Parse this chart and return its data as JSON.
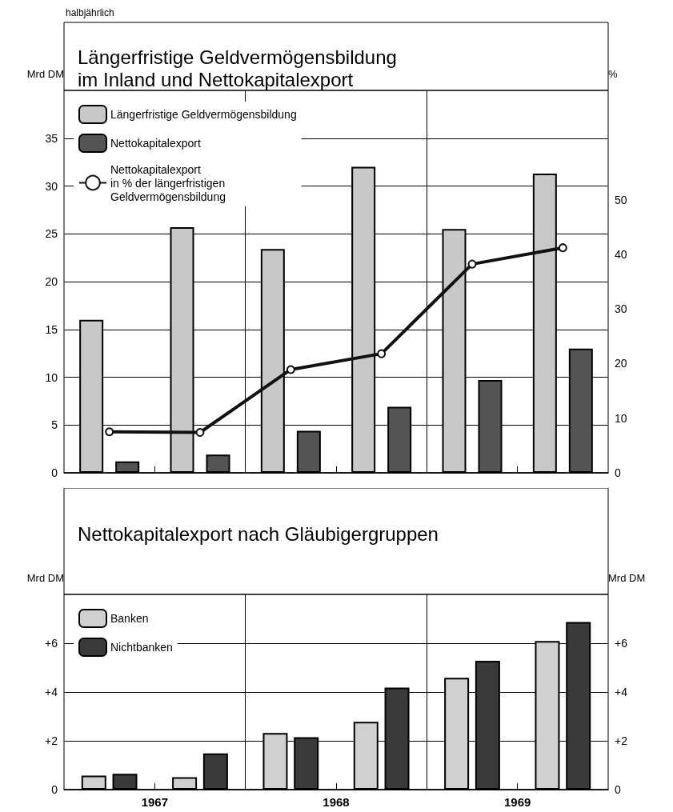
{
  "chart_data": [
    {
      "type": "bar",
      "title": "Längerfristige Geldvermögensbildung\nim Inland und Nettokapitalexport",
      "annotations": [
        "halbjährlich"
      ],
      "ylabel": "Mrd DM",
      "y2label": "%",
      "x": [
        1967.25,
        1967.75,
        1968.25,
        1968.75,
        1969.25,
        1969.75
      ],
      "series": [
        {
          "name": "Längerfristige Geldvermögensbildung",
          "color": "#c8c8c8",
          "values": [
            16.0,
            25.7,
            23.4,
            32.0,
            25.5,
            31.3
          ]
        },
        {
          "name": "Nettokapitalexport",
          "color": "#555555",
          "values": [
            1.2,
            1.9,
            4.4,
            6.9,
            9.7,
            13.0
          ]
        },
        {
          "name": "Nettokapitalexport\nin % der längerfristigen\nGeldvermögensbildung",
          "type": "line",
          "axis": "y2",
          "color": "#111111",
          "marker": "circle",
          "values": [
            7.5,
            7.4,
            18.9,
            21.8,
            38.2,
            41.2
          ]
        }
      ],
      "xlim": [
        1967,
        1970
      ],
      "xticks": [
        {
          "value": 1967.5,
          "label": null
        },
        {
          "value": 1968.5,
          "label": null
        },
        {
          "value": 1969.5,
          "label": null
        }
      ],
      "ylim": [
        0,
        40
      ],
      "yticks": [
        0,
        5,
        10,
        15,
        20,
        25,
        30,
        35
      ],
      "y2lim": [
        0,
        70
      ],
      "y2ticks": [
        0,
        10,
        20,
        30,
        40,
        50
      ],
      "ref_lines": [
        {
          "axis": "x",
          "value": 1968
        },
        {
          "axis": "x",
          "value": 1969
        }
      ],
      "grid": "y",
      "legend": "top left",
      "tick_labels": "y"
    },
    {
      "type": "bar",
      "title": "Nettokapitalexport nach Gläubigergruppen",
      "ylabel": "Mrd DM",
      "y2label": "Mrd DM",
      "x": [
        1967.25,
        1967.75,
        1968.25,
        1968.75,
        1969.25,
        1969.75
      ],
      "series": [
        {
          "name": "Banken",
          "color": "#d0d0d0",
          "values": [
            0.57,
            0.51,
            2.32,
            2.78,
            4.58,
            6.09
          ]
        },
        {
          "name": "Nichtbanken",
          "color": "#3a3a3a",
          "values": [
            0.65,
            1.48,
            2.15,
            4.18,
            5.28,
            6.87
          ]
        }
      ],
      "xlim": [
        1967,
        1970
      ],
      "xticks": [
        {
          "value": 1967.5,
          "label": "1967"
        },
        {
          "value": 1968.5,
          "label": "1968"
        },
        {
          "value": 1969.5,
          "label": "1969"
        }
      ],
      "ylim": [
        0,
        8
      ],
      "yticks": [
        0,
        {
          "value": 2,
          "label": "+2"
        },
        {
          "value": 4,
          "label": "+4"
        },
        {
          "value": 6,
          "label": "+6"
        }
      ],
      "y2lim": [
        0,
        8
      ],
      "y2ticks": [
        0,
        {
          "value": 2,
          "label": "+2"
        },
        {
          "value": 4,
          "label": "+4"
        },
        {
          "value": 6,
          "label": "+6"
        }
      ],
      "ref_lines": [
        {
          "axis": "x",
          "value": 1968
        },
        {
          "axis": "x",
          "value": 1969
        }
      ],
      "grid": "y",
      "legend": "top left"
    }
  ]
}
